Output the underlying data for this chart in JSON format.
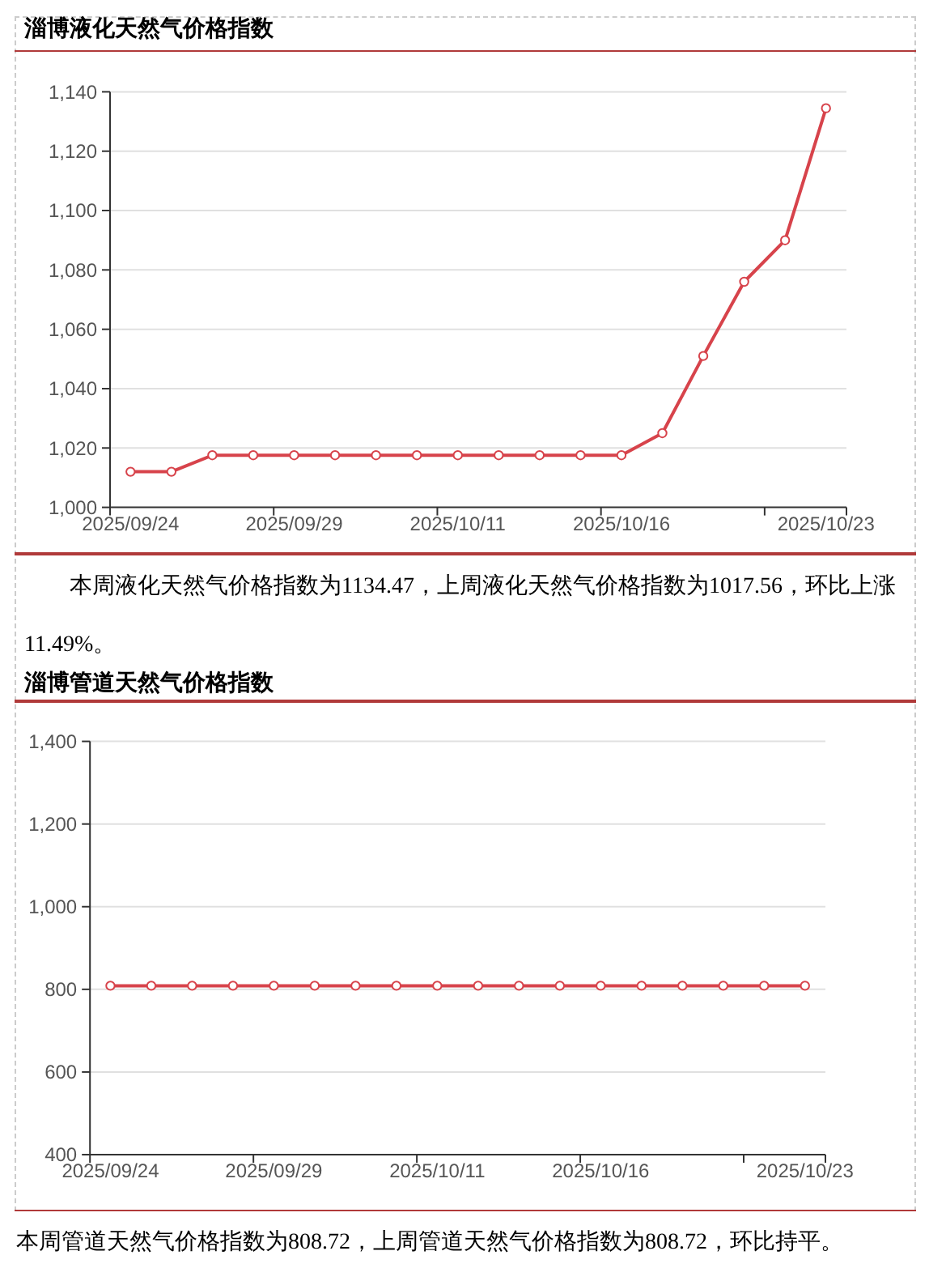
{
  "chart_data": [
    {
      "type": "line",
      "title": "淄博液化天然气价格指数",
      "annotations": [
        "本周液化天然气价格指数为1134.47，上周液化天然气价格指数为1017.56，环比上涨11.49%。"
      ],
      "categories": [
        "2025/09/24",
        null,
        null,
        null,
        "2025/09/29",
        null,
        null,
        null,
        "2025/10/11",
        null,
        null,
        null,
        "2025/10/16",
        null,
        null,
        null,
        null,
        "2025/10/23"
      ],
      "series": [
        {
          "color": "#d7434b",
          "values": [
            1012,
            1012,
            1017.56,
            1017.56,
            1017.56,
            1017.56,
            1017.56,
            1017.56,
            1017.56,
            1017.56,
            1017.56,
            1017.56,
            1017.56,
            1025,
            1051,
            1076,
            1090,
            1134.47
          ]
        }
      ],
      "ylim": [
        1000,
        1140
      ],
      "yticks": [
        {
          "value": 1000,
          "label": "1,000"
        },
        {
          "value": 1020,
          "label": "1,020"
        },
        {
          "value": 1040,
          "label": "1,040"
        },
        {
          "value": 1060,
          "label": "1,060"
        },
        {
          "value": 1080,
          "label": "1,080"
        },
        {
          "value": 1100,
          "label": "1,100"
        },
        {
          "value": 1120,
          "label": "1,120"
        },
        {
          "value": 1140,
          "label": "1,140"
        }
      ],
      "grid": "y",
      "marker": "circle"
    },
    {
      "type": "line",
      "title": "淄博管道天然气价格指数",
      "annotations": [
        "本周管道天然气价格指数为808.72，上周管道天然气价格指数为808.72，环比持平。"
      ],
      "categories": [
        "2025/09/24",
        null,
        null,
        null,
        "2025/09/29",
        null,
        null,
        null,
        "2025/10/11",
        null,
        null,
        null,
        "2025/10/16",
        null,
        null,
        null,
        null,
        "2025/10/23"
      ],
      "series": [
        {
          "color": "#d7434b",
          "values": [
            808.72,
            808.72,
            808.72,
            808.72,
            808.72,
            808.72,
            808.72,
            808.72,
            808.72,
            808.72,
            808.72,
            808.72,
            808.72,
            808.72,
            808.72,
            808.72,
            808.72,
            808.72
          ]
        }
      ],
      "ylim": [
        400,
        1400
      ],
      "yticks": [
        400,
        600,
        800,
        {
          "value": 1000,
          "label": "1,000"
        },
        {
          "value": 1200,
          "label": "1,200"
        },
        {
          "value": 1400,
          "label": "1,400"
        }
      ],
      "grid": "y",
      "marker": "circle"
    }
  ]
}
